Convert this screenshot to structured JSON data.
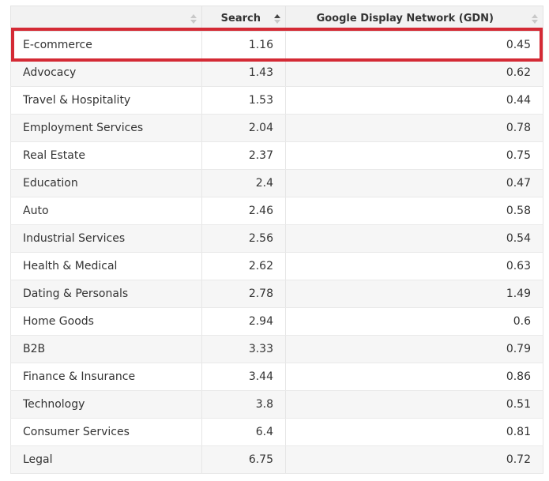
{
  "table": {
    "headers": {
      "industry": "",
      "search": "Search",
      "gdn": "Google Display Network (GDN)"
    },
    "sorted_by": "search",
    "sort_direction": "ascending",
    "highlight_color": "#d42a35",
    "rows": [
      {
        "industry": "E-commerce",
        "search": "1.16",
        "gdn": "0.45"
      },
      {
        "industry": "Advocacy",
        "search": "1.43",
        "gdn": "0.62"
      },
      {
        "industry": "Travel & Hospitality",
        "search": "1.53",
        "gdn": "0.44"
      },
      {
        "industry": "Employment Services",
        "search": "2.04",
        "gdn": "0.78"
      },
      {
        "industry": "Real Estate",
        "search": "2.37",
        "gdn": "0.75"
      },
      {
        "industry": "Education",
        "search": "2.4",
        "gdn": "0.47"
      },
      {
        "industry": "Auto",
        "search": "2.46",
        "gdn": "0.58"
      },
      {
        "industry": "Industrial Services",
        "search": "2.56",
        "gdn": "0.54"
      },
      {
        "industry": "Health & Medical",
        "search": "2.62",
        "gdn": "0.63"
      },
      {
        "industry": "Dating & Personals",
        "search": "2.78",
        "gdn": "1.49"
      },
      {
        "industry": "Home Goods",
        "search": "2.94",
        "gdn": "0.6"
      },
      {
        "industry": "B2B",
        "search": "3.33",
        "gdn": "0.79"
      },
      {
        "industry": "Finance & Insurance",
        "search": "3.44",
        "gdn": "0.86"
      },
      {
        "industry": "Technology",
        "search": "3.8",
        "gdn": "0.51"
      },
      {
        "industry": "Consumer Services",
        "search": "6.4",
        "gdn": "0.81"
      },
      {
        "industry": "Legal",
        "search": "6.75",
        "gdn": "0.72"
      }
    ]
  }
}
